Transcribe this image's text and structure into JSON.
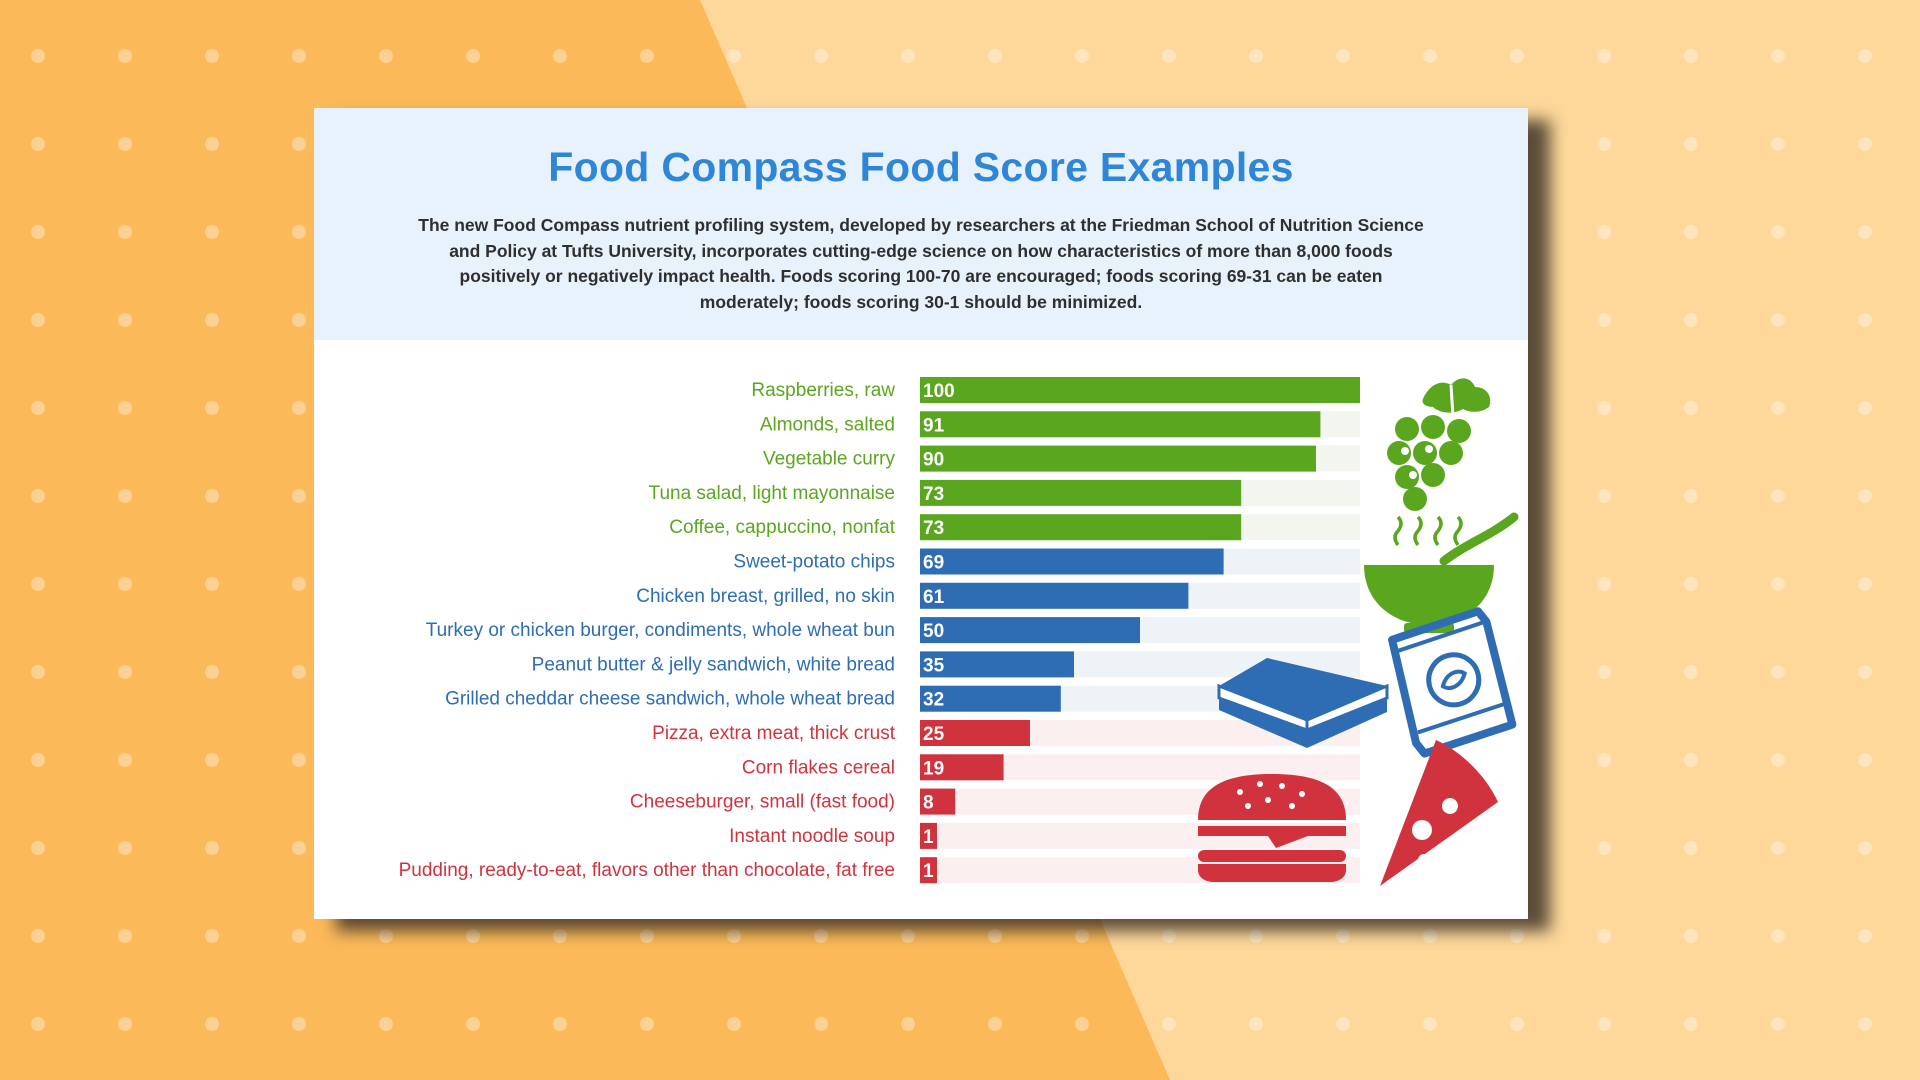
{
  "colors": {
    "background_left": "#fbb95a",
    "background_right": "#fdd89a",
    "encouraged": "#5ba61f",
    "moderate": "#2e6db3",
    "minimize": "#d1333e",
    "title": "#2f86d6"
  },
  "card": {
    "title": "Food Compass Food Score Examples",
    "description": "The new Food Compass nutrient profiling system, developed by researchers at the Friedman School of Nutrition Science and Policy at Tufts University, incorporates cutting-edge science on how characteristics of more than 8,000 foods positively or negatively impact health. Foods scoring 100-70 are encouraged; foods scoring 69-31 can be eaten moderately;  foods scoring 30-1 should be minimized."
  },
  "icons": [
    "grapes-icon",
    "soup-bowl-icon",
    "chips-bag-icon",
    "sandwich-icon",
    "burger-icon",
    "pizza-icon"
  ],
  "chart_data": {
    "type": "bar",
    "orientation": "horizontal",
    "xlim": [
      0,
      100
    ],
    "grid": false,
    "categories": [
      "Raspberries, raw",
      "Almonds, salted",
      "Vegetable curry",
      "Tuna salad, light mayonnaise",
      "Coffee, cappuccino, nonfat",
      "Sweet-potato chips",
      "Chicken breast, grilled, no skin",
      "Turkey or chicken burger, condiments, whole wheat bun",
      "Peanut butter & jelly sandwich, white bread",
      "Grilled cheddar cheese sandwich, whole wheat bread",
      "Pizza, extra meat, thick crust",
      "Corn flakes cereal",
      "Cheeseburger, small (fast food)",
      "Instant noodle soup",
      "Pudding, ready-to-eat, flavors other than chocolate, fat free"
    ],
    "values": [
      100,
      91,
      90,
      73,
      73,
      69,
      61,
      50,
      35,
      32,
      25,
      19,
      8,
      1,
      1
    ],
    "groups": [
      "encouraged",
      "encouraged",
      "encouraged",
      "encouraged",
      "encouraged",
      "moderate",
      "moderate",
      "moderate",
      "moderate",
      "moderate",
      "minimize",
      "minimize",
      "minimize",
      "minimize",
      "minimize"
    ]
  }
}
